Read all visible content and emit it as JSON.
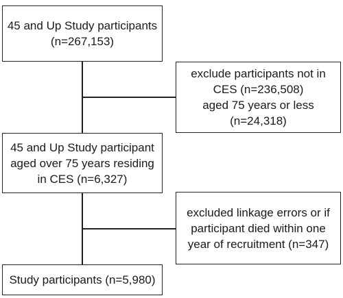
{
  "flowchart": {
    "participants_box": {
      "lines": [
        "45 and Up Study participants",
        "(n=267,153)"
      ]
    },
    "exclusion_1_box": {
      "lines": [
        "exclude participants not in",
        "CES (n=236,508)",
        "aged 75 years or less",
        "(n=24,318)"
      ]
    },
    "aged75_box": {
      "lines": [
        "45 and Up Study participant",
        "aged over 75 years residing",
        "in CES (n=6,327)"
      ]
    },
    "exclusion_2_box": {
      "lines": [
        "excluded linkage errors or if",
        "participant died within one",
        "year of recruitment (n=347)"
      ]
    },
    "study_box": {
      "lines": [
        "Study participants (n=5,980)"
      ]
    }
  }
}
